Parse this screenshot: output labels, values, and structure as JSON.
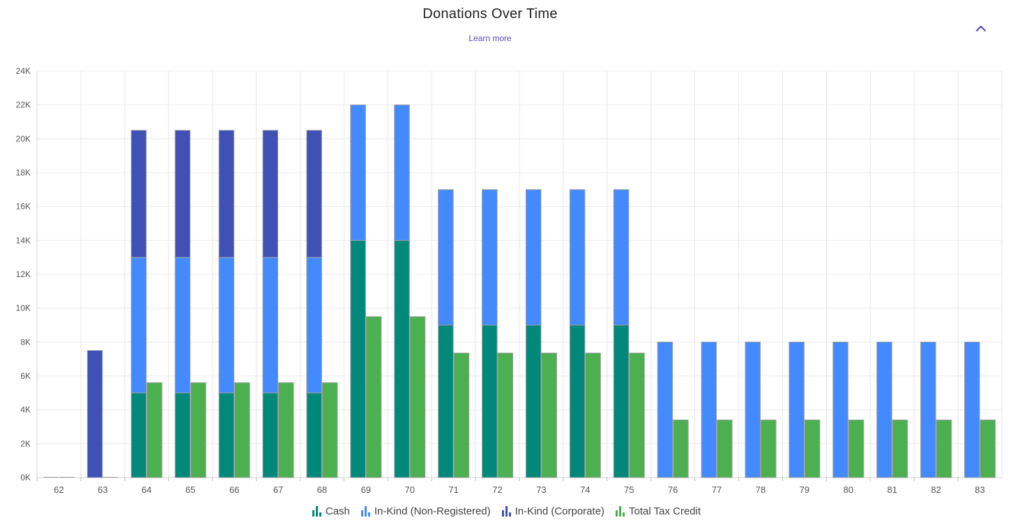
{
  "header": {
    "title": "Donations Over Time",
    "learn_more": "Learn more",
    "collapse_icon": "chevron-up-icon",
    "accent": "#5c4bb5"
  },
  "chart_data": {
    "type": "bar",
    "stacked": true,
    "title": "Donations Over Time",
    "xlabel": "",
    "ylabel": "",
    "categories": [
      "62",
      "63",
      "64",
      "65",
      "66",
      "67",
      "68",
      "69",
      "70",
      "71",
      "72",
      "73",
      "74",
      "75",
      "76",
      "77",
      "78",
      "79",
      "80",
      "81",
      "82",
      "83"
    ],
    "ylim": [
      0,
      24000
    ],
    "yticks": [
      "0K",
      "2K",
      "4K",
      "6K",
      "8K",
      "10K",
      "12K",
      "14K",
      "16K",
      "18K",
      "20K",
      "22K",
      "24K"
    ],
    "grid": true,
    "legend_position": "bottom",
    "series": [
      {
        "name": "Cash",
        "stack": "donations",
        "color": "#00897b",
        "values": [
          0,
          0,
          5000,
          5000,
          5000,
          5000,
          5000,
          14000,
          14000,
          9000,
          9000,
          9000,
          9000,
          9000,
          0,
          0,
          0,
          0,
          0,
          0,
          0,
          0
        ]
      },
      {
        "name": "In-Kind (Non-Registered)",
        "stack": "donations",
        "color": "#448aff",
        "values": [
          0,
          0,
          8000,
          8000,
          8000,
          8000,
          8000,
          8000,
          8000,
          8000,
          8000,
          8000,
          8000,
          8000,
          8000,
          8000,
          8000,
          8000,
          8000,
          8000,
          8000,
          8000
        ]
      },
      {
        "name": "In-Kind (Corporate)",
        "stack": "donations",
        "color": "#3f51b5",
        "values": [
          0,
          7500,
          7500,
          7500,
          7500,
          7500,
          7500,
          0,
          0,
          0,
          0,
          0,
          0,
          0,
          0,
          0,
          0,
          0,
          0,
          0,
          0,
          0
        ]
      },
      {
        "name": "Total Tax Credit",
        "stack": "tax",
        "color": "#4caf50",
        "values": [
          0,
          0,
          5600,
          5600,
          5600,
          5600,
          5600,
          9500,
          9500,
          7350,
          7350,
          7350,
          7350,
          7350,
          3400,
          3400,
          3400,
          3400,
          3400,
          3400,
          3400,
          3400
        ]
      }
    ]
  }
}
